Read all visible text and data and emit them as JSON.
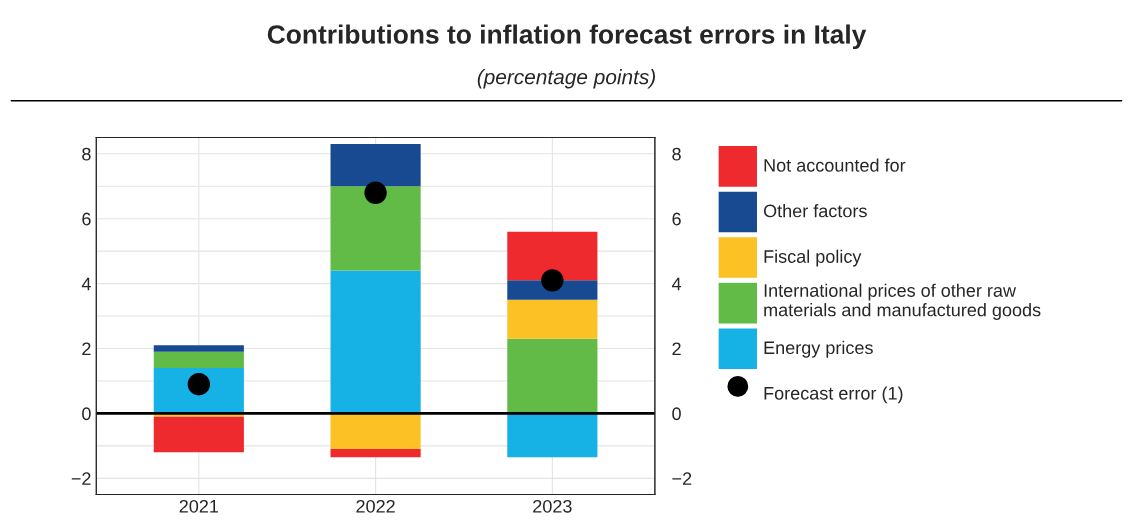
{
  "chart_data": {
    "type": "bar",
    "title": "Contributions to inflation forecast errors in Italy",
    "subtitle": "(percentage points)",
    "categories": [
      "2021",
      "2022",
      "2023"
    ],
    "stacked": true,
    "series": [
      {
        "name": "Energy prices",
        "color": "#16b1e5",
        "values": [
          1.4,
          4.4,
          -1.35
        ]
      },
      {
        "name": "International prices of other raw\nmaterials and manufactured goods",
        "color": "#63bb47",
        "values": [
          0.5,
          2.6,
          2.3
        ]
      },
      {
        "name": "Fiscal policy",
        "color": "#fcc125",
        "values": [
          -0.1,
          -1.1,
          1.2
        ]
      },
      {
        "name": "Other factors",
        "color": "#184a92",
        "values": [
          0.2,
          1.3,
          0.6
        ]
      },
      {
        "name": "Not accounted for",
        "color": "#ee2a2f",
        "values": [
          -1.1,
          -0.25,
          1.5
        ]
      },
      {
        "name": "Forecast error (1)",
        "type": "scatter",
        "color": "#000000",
        "values": [
          0.9,
          6.8,
          4.1
        ]
      }
    ],
    "ylim": [
      -2.5,
      8.5
    ],
    "yticks": [
      {
        "value": -2,
        "label": "−2"
      },
      {
        "value": -1,
        "label": null
      },
      0,
      {
        "value": 1,
        "label": null
      },
      2,
      {
        "value": 3,
        "label": null
      },
      4,
      {
        "value": 5,
        "label": null
      },
      6,
      {
        "value": 7,
        "label": null
      },
      8
    ],
    "y2lim": [
      -2.5,
      8.5
    ],
    "y2ticks": [
      {
        "value": -2,
        "label": "−2"
      },
      0,
      2,
      4,
      6,
      8
    ],
    "ref_lines": [
      {
        "axis": "y",
        "value": 0,
        "color": "#000000"
      }
    ],
    "grid": true,
    "legend": "right",
    "marker": "circle"
  }
}
